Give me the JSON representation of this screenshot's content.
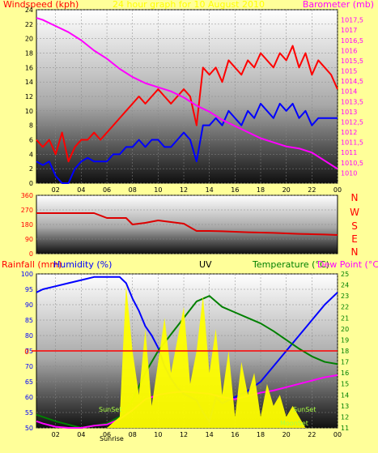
{
  "chart_data": [
    {
      "type": "line",
      "title": "24 hour graph for 10 August 2010",
      "ylabel_left": "Windspeed (kph)",
      "ylabel_right": "Barometer (mb)",
      "ylim_left": [
        0,
        24
      ],
      "ylim_right": [
        1009.5,
        1018
      ],
      "left_ticks": [
        "0",
        "2",
        "4",
        "6",
        "8",
        "10",
        "12",
        "14",
        "16",
        "18",
        "20",
        "22",
        "24"
      ],
      "right_ticks": [
        "1010",
        "1010,5",
        "1011",
        "1011,5",
        "1012",
        "1012,5",
        "1013",
        "1013,5",
        "1014",
        "1014,5",
        "1015",
        "1015,5",
        "1016",
        "1016,5",
        "1017",
        "1017,5"
      ],
      "x_ticks": [
        "02",
        "04",
        "06",
        "08",
        "10",
        "12",
        "14",
        "16",
        "18",
        "20",
        "22",
        "00"
      ],
      "xlim": [
        0.5,
        24
      ],
      "series": [
        {
          "color": "#ff0000",
          "axis": "left",
          "x": [
            0.5,
            1,
            1.5,
            2,
            2.5,
            3,
            3.5,
            4,
            4.5,
            5,
            5.5,
            6,
            6.5,
            7,
            7.5,
            8,
            8.5,
            9,
            9.5,
            10,
            10.5,
            11,
            11.5,
            12,
            12.5,
            13,
            13.5,
            14,
            14.5,
            15,
            15.5,
            16,
            16.5,
            17,
            17.5,
            18,
            18.5,
            19,
            19.5,
            20,
            20.5,
            21,
            21.5,
            22,
            22.5,
            23,
            23.5,
            24
          ],
          "y": [
            6,
            5,
            6,
            4,
            7,
            3,
            5,
            6,
            6,
            7,
            6,
            7,
            8,
            9,
            10,
            11,
            12,
            11,
            12,
            13,
            12,
            11,
            12,
            13,
            12,
            8,
            16,
            15,
            16,
            14,
            17,
            16,
            15,
            17,
            16,
            18,
            17,
            16,
            18,
            17,
            19,
            16,
            18,
            15,
            17,
            16,
            15,
            13
          ]
        },
        {
          "color": "#0000ff",
          "axis": "left",
          "x": [
            0.5,
            1,
            1.5,
            2,
            2.5,
            3,
            3.5,
            4,
            4.5,
            5,
            5.5,
            6,
            6.5,
            7,
            7.5,
            8,
            8.5,
            9,
            9.5,
            10,
            10.5,
            11,
            11.5,
            12,
            12.5,
            13,
            13.5,
            14,
            14.5,
            15,
            15.5,
            16,
            16.5,
            17,
            17.5,
            18,
            18.5,
            19,
            19.5,
            20,
            20.5,
            21,
            21.5,
            22,
            22.5,
            23,
            23.5,
            24
          ],
          "y": [
            3,
            2.5,
            3,
            1,
            0,
            0,
            2,
            3,
            3.5,
            3,
            3,
            3,
            4,
            4,
            5,
            5,
            6,
            5,
            6,
            6,
            5,
            5,
            6,
            7,
            6,
            3,
            8,
            8,
            9,
            8,
            10,
            9,
            8,
            10,
            9,
            11,
            10,
            9,
            11,
            10,
            11,
            9,
            10,
            8,
            9,
            9,
            9,
            9
          ]
        },
        {
          "color": "#ff00ff",
          "axis": "right",
          "x": [
            0.5,
            1,
            2,
            3,
            4,
            5,
            6,
            7,
            8,
            9,
            10,
            11,
            12,
            13,
            14,
            15,
            16,
            17,
            18,
            19,
            20,
            21,
            22,
            23,
            24
          ],
          "y": [
            1017.6,
            1017.5,
            1017.2,
            1016.9,
            1016.5,
            1016.0,
            1015.6,
            1015.1,
            1014.7,
            1014.4,
            1014.2,
            1014.0,
            1013.7,
            1013.3,
            1013.0,
            1012.6,
            1012.3,
            1012.0,
            1011.7,
            1011.5,
            1011.3,
            1011.2,
            1011.0,
            1010.6,
            1010.2
          ]
        }
      ]
    },
    {
      "type": "line",
      "ylabel_right": [
        "N",
        "W",
        "S",
        "E",
        "N"
      ],
      "ylim": [
        0,
        360
      ],
      "left_ticks": [
        "0",
        "90",
        "180",
        "270",
        "360"
      ],
      "xlim": [
        0.5,
        24
      ],
      "series": [
        {
          "color": "#dd0000",
          "x": [
            0.5,
            1,
            2,
            3,
            4,
            5,
            6,
            6.5,
            7,
            7.5,
            8,
            9,
            10,
            11,
            12,
            13,
            14,
            15,
            16,
            17,
            18,
            19,
            20,
            21,
            22,
            23,
            24
          ],
          "y": [
            250,
            250,
            250,
            250,
            250,
            250,
            220,
            220,
            220,
            220,
            180,
            190,
            205,
            195,
            185,
            140,
            140,
            138,
            135,
            132,
            130,
            128,
            125,
            122,
            120,
            118,
            115
          ]
        }
      ]
    },
    {
      "type": "line",
      "labels": {
        "rainfall": "Rainfall (mm)",
        "humidity": "Humidity (%)",
        "uv": "UV",
        "temperature": "Temperature (°C)",
        "dewpoint": "Dew Point (°C)"
      },
      "ylim_left": [
        50,
        100
      ],
      "ylim_right": [
        11,
        25
      ],
      "left_ticks": [
        "50",
        "55",
        "60",
        "65",
        "70",
        "75",
        "80",
        "85",
        "90",
        "95",
        "100"
      ],
      "right_ticks": [
        "11",
        "12",
        "13",
        "14",
        "15",
        "16",
        "17",
        "18",
        "19",
        "20",
        "21",
        "22",
        "23",
        "24",
        "25"
      ],
      "x_ticks": [
        "02",
        "04",
        "06",
        "08",
        "10",
        "12",
        "14",
        "16",
        "18",
        "20",
        "22",
        "00"
      ],
      "xlim": [
        0.5,
        24
      ],
      "rain_value": "0",
      "rain_line_humidity_level": 75,
      "annotations": [
        "Sunrise",
        "SunSet",
        "SunSet",
        "MoonSet"
      ],
      "series": [
        {
          "name": "Humidity (%)",
          "color": "#0000ff",
          "axis": "left",
          "x": [
            0.5,
            1,
            2,
            3,
            4,
            5,
            6,
            6.5,
            7,
            7.5,
            8,
            8.5,
            9,
            9.5,
            10,
            10.5,
            11,
            11.5,
            12,
            12.5,
            13,
            13.5,
            14,
            14.5,
            15,
            16,
            17,
            18,
            19,
            20,
            21,
            22,
            23,
            24
          ],
          "y": [
            94,
            95,
            96,
            97,
            98,
            99,
            99,
            99,
            99,
            97,
            92,
            88,
            83,
            80,
            76,
            70,
            66,
            63,
            61,
            60,
            59,
            55,
            52,
            60,
            58,
            60,
            62,
            65,
            70,
            75,
            80,
            85,
            90,
            94
          ]
        },
        {
          "name": "Temperature (°C)",
          "color": "#008000",
          "axis": "right",
          "x": [
            0.5,
            1,
            2,
            3,
            4,
            5,
            6,
            7,
            8,
            9,
            10,
            11,
            12,
            13,
            14,
            15,
            16,
            17,
            18,
            19,
            20,
            21,
            22,
            23,
            24
          ],
          "y": [
            12.2,
            12.0,
            11.6,
            11.3,
            11.0,
            11.2,
            11.4,
            12.0,
            13.5,
            16.0,
            18.0,
            19.5,
            21.0,
            22.5,
            23.0,
            22.0,
            21.5,
            21.0,
            20.5,
            19.8,
            19.0,
            18.2,
            17.5,
            17.0,
            16.8
          ]
        },
        {
          "name": "Dew Point (°C)",
          "color": "#ff00ff",
          "axis": "right",
          "x": [
            0.5,
            1,
            2,
            3,
            4,
            5,
            6,
            7,
            8,
            9,
            10,
            11,
            12,
            13,
            14,
            15,
            16,
            17,
            18,
            19,
            20,
            21,
            22,
            23,
            24
          ],
          "y": [
            11.6,
            11.4,
            11.1,
            11.0,
            11.0,
            11.2,
            11.3,
            11.8,
            12.6,
            13.6,
            14.0,
            14.2,
            14.3,
            14.2,
            14.1,
            13.8,
            13.6,
            13.9,
            14.2,
            14.4,
            14.7,
            15.0,
            15.3,
            15.6,
            15.8
          ]
        },
        {
          "name": "UV",
          "color": "#ffff00",
          "axis": "right",
          "x": [
            6,
            7,
            7.5,
            8,
            8.5,
            9,
            9.5,
            10,
            10.5,
            11,
            11.5,
            12,
            12.5,
            13,
            13.5,
            14,
            14.5,
            15,
            15.5,
            16,
            16.5,
            17,
            17.5,
            18,
            18.5,
            19,
            19.5,
            20,
            20.5,
            21,
            21.5
          ],
          "y": [
            11,
            12,
            24,
            18,
            14,
            20,
            13,
            17,
            21,
            16,
            19,
            22,
            15,
            18,
            23,
            16,
            20,
            14,
            18,
            12,
            17,
            14,
            16,
            12,
            15,
            13,
            14,
            12,
            13,
            12,
            11
          ]
        }
      ]
    }
  ]
}
